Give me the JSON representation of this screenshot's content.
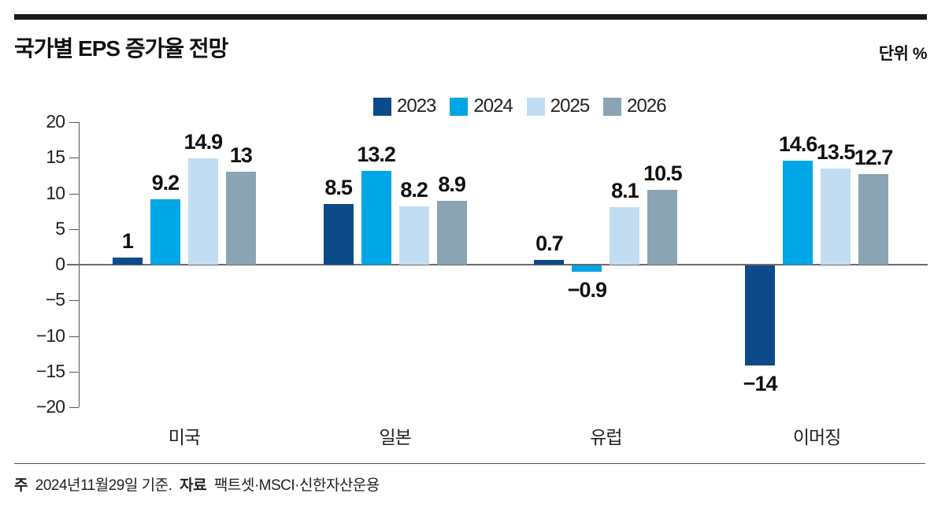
{
  "header": {
    "title": "국가별 EPS 증가율 전망",
    "unit_label": "단위 %"
  },
  "chart_data": {
    "type": "bar",
    "title": "국가별 EPS 증가율 전망",
    "unit": "%",
    "categories": [
      "미국",
      "일본",
      "유럽",
      "이머징"
    ],
    "series": [
      {
        "name": "2023",
        "color": "#0d4a8a",
        "values": [
          1,
          8.5,
          0.7,
          -14
        ]
      },
      {
        "name": "2024",
        "color": "#00a7e6",
        "values": [
          9.2,
          13.2,
          -0.9,
          14.6
        ]
      },
      {
        "name": "2025",
        "color": "#c2ddf2",
        "values": [
          14.9,
          8.2,
          8.1,
          13.5
        ]
      },
      {
        "name": "2026",
        "color": "#8ba4b4",
        "values": [
          13,
          8.9,
          10.5,
          12.7
        ]
      }
    ],
    "ylim": [
      -20,
      20
    ],
    "yticks": [
      20,
      15,
      10,
      5,
      0,
      -5,
      -10,
      -15,
      -20
    ],
    "legend_position": "top-center",
    "grid": false
  },
  "footer": {
    "note_label": "주",
    "note_text": "2024년11월29일 기준.",
    "source_label": "자료",
    "source_text": "팩트셋·MSCI·신한자산운용"
  }
}
